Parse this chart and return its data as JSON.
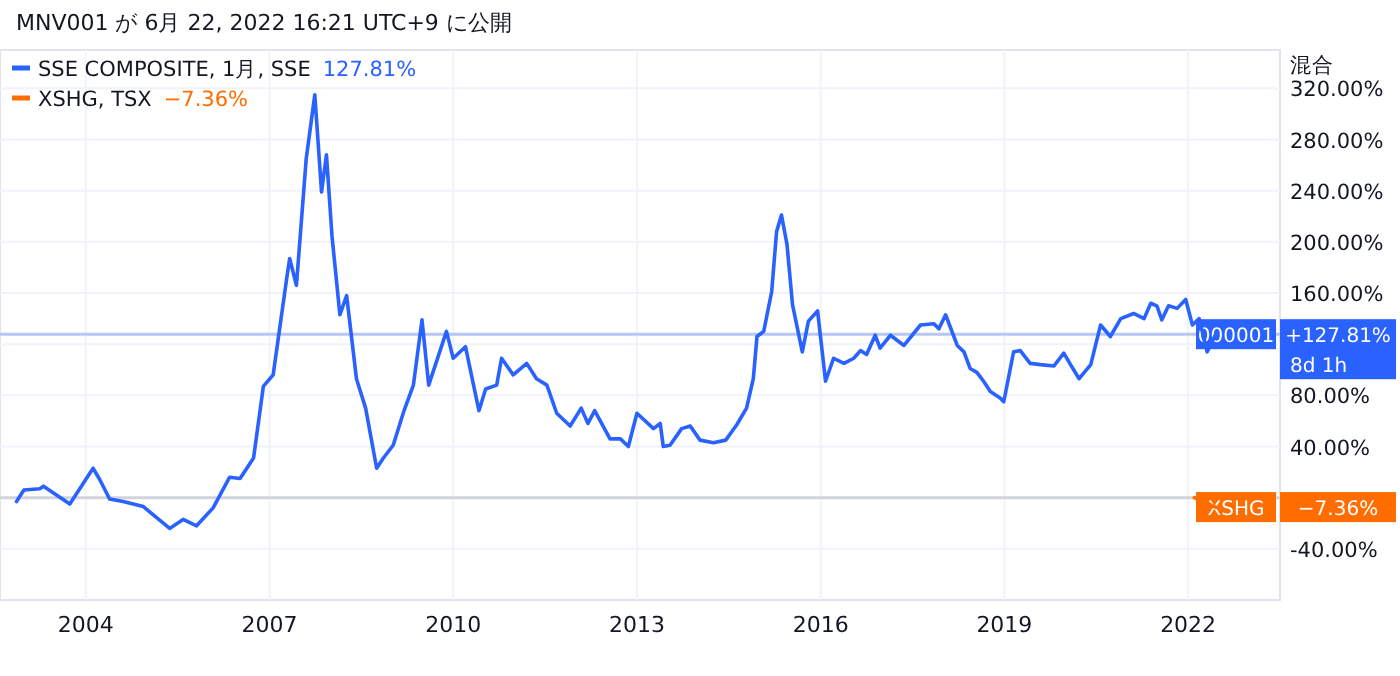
{
  "chart_data": {
    "type": "line",
    "title": "MNV001 が 6月 22, 2022 16:21 UTC+9 に公開",
    "xlim": [
      2002.6,
      2023.5
    ],
    "xticks": [
      2004,
      2007,
      2010,
      2013,
      2016,
      2019,
      2022
    ],
    "ylim": [
      -80,
      350
    ],
    "yticks": [
      {
        "value": -40,
        "label": "-40.00%"
      },
      {
        "value": 0,
        "label": null
      },
      {
        "value": 40,
        "label": "40.00%"
      },
      {
        "value": 80,
        "label": "80.00%"
      },
      {
        "value": 120,
        "label": null
      },
      {
        "value": 160,
        "label": "160.00%"
      },
      {
        "value": 200,
        "label": "200.00%"
      },
      {
        "value": 240,
        "label": "240.00%"
      },
      {
        "value": 280,
        "label": "280.00%"
      },
      {
        "value": 320,
        "label": "320.00%"
      }
    ],
    "grid": true,
    "legend": "top left",
    "ref_lines": [
      {
        "axis": "y",
        "value": 127.81,
        "color": "#b8c6f5"
      },
      {
        "axis": "y",
        "value": 0,
        "color": "#d1d4dc"
      }
    ],
    "annotations": [
      "混合",
      "127.81%",
      "−7.36%",
      "8d 1h",
      "000001",
      "+127.81%",
      "XSHG",
      "−7.36%"
    ],
    "series": [
      {
        "name": "SSE COMPOSITE, 1月, SSE",
        "color": "#2962ff",
        "x": [
          2002.87,
          2002.99,
          2003.25,
          2003.31,
          2003.74,
          2004.12,
          2004.23,
          2004.39,
          2004.61,
          2004.94,
          2005.37,
          2005.59,
          2005.81,
          2006.08,
          2006.35,
          2006.52,
          2006.74,
          2006.9,
          2007.06,
          2007.28,
          2007.33,
          2007.44,
          2007.6,
          2007.74,
          2007.85,
          2007.93,
          2008.02,
          2008.15,
          2008.26,
          2008.42,
          2008.57,
          2008.75,
          2008.86,
          2009.02,
          2009.19,
          2009.35,
          2009.49,
          2009.6,
          2009.89,
          2010.0,
          2010.2,
          2010.42,
          2010.53,
          2010.71,
          2010.79,
          2010.98,
          2011.2,
          2011.36,
          2011.53,
          2011.69,
          2011.91,
          2012.09,
          2012.2,
          2012.31,
          2012.56,
          2012.73,
          2012.86,
          2013.0,
          2013.27,
          2013.38,
          2013.43,
          2013.54,
          2013.73,
          2013.87,
          2014.03,
          2014.25,
          2014.45,
          2014.63,
          2014.79,
          2014.9,
          2014.96,
          2015.07,
          2015.2,
          2015.28,
          2015.36,
          2015.45,
          2015.54,
          2015.7,
          2015.8,
          2015.95,
          2016.08,
          2016.21,
          2016.38,
          2016.54,
          2016.65,
          2016.75,
          2016.89,
          2016.97,
          2017.14,
          2017.36,
          2017.63,
          2017.85,
          2017.93,
          2018.04,
          2018.23,
          2018.34,
          2018.44,
          2018.55,
          2018.66,
          2018.77,
          2018.93,
          2018.99,
          2019.15,
          2019.26,
          2019.42,
          2019.59,
          2019.81,
          2019.97,
          2020.08,
          2020.22,
          2020.41,
          2020.57,
          2020.73,
          2020.9,
          2021.11,
          2021.28,
          2021.39,
          2021.49,
          2021.57,
          2021.68,
          2021.82,
          2021.96,
          2022.07,
          2022.18,
          2022.31,
          2022.45
        ],
        "values": [
          -3,
          6,
          7,
          9,
          -5,
          23,
          14,
          -1,
          -3,
          -7,
          -24,
          -17,
          -22,
          -8,
          16,
          15,
          31,
          87,
          96,
          171,
          187,
          166,
          265,
          315,
          239,
          268,
          205,
          143,
          158,
          93,
          70,
          23,
          31,
          41,
          67,
          88,
          139,
          88,
          130,
          109,
          118,
          68,
          85,
          88,
          109,
          96,
          105,
          93,
          88,
          66,
          56,
          70,
          58,
          68,
          46,
          46,
          40,
          66,
          54,
          58,
          40,
          41,
          54,
          56,
          45,
          43,
          45,
          57,
          70,
          93,
          126,
          130,
          161,
          208,
          221,
          198,
          151,
          114,
          138,
          146,
          91,
          109,
          105,
          109,
          115,
          112,
          127,
          117,
          127,
          119,
          135,
          136,
          132,
          143,
          119,
          114,
          101,
          98,
          91,
          83,
          78,
          75,
          114,
          115,
          105,
          104,
          103,
          113,
          104,
          93,
          104,
          135,
          126,
          140,
          144,
          140,
          152,
          150,
          139,
          150,
          148,
          155,
          135,
          140,
          114,
          127.81
        ]
      },
      {
        "name": "XSHG, TSX",
        "color": "#ff6d00",
        "x": [
          2022.1,
          2022.45
        ],
        "values": [
          0,
          -7.36
        ]
      }
    ]
  }
}
